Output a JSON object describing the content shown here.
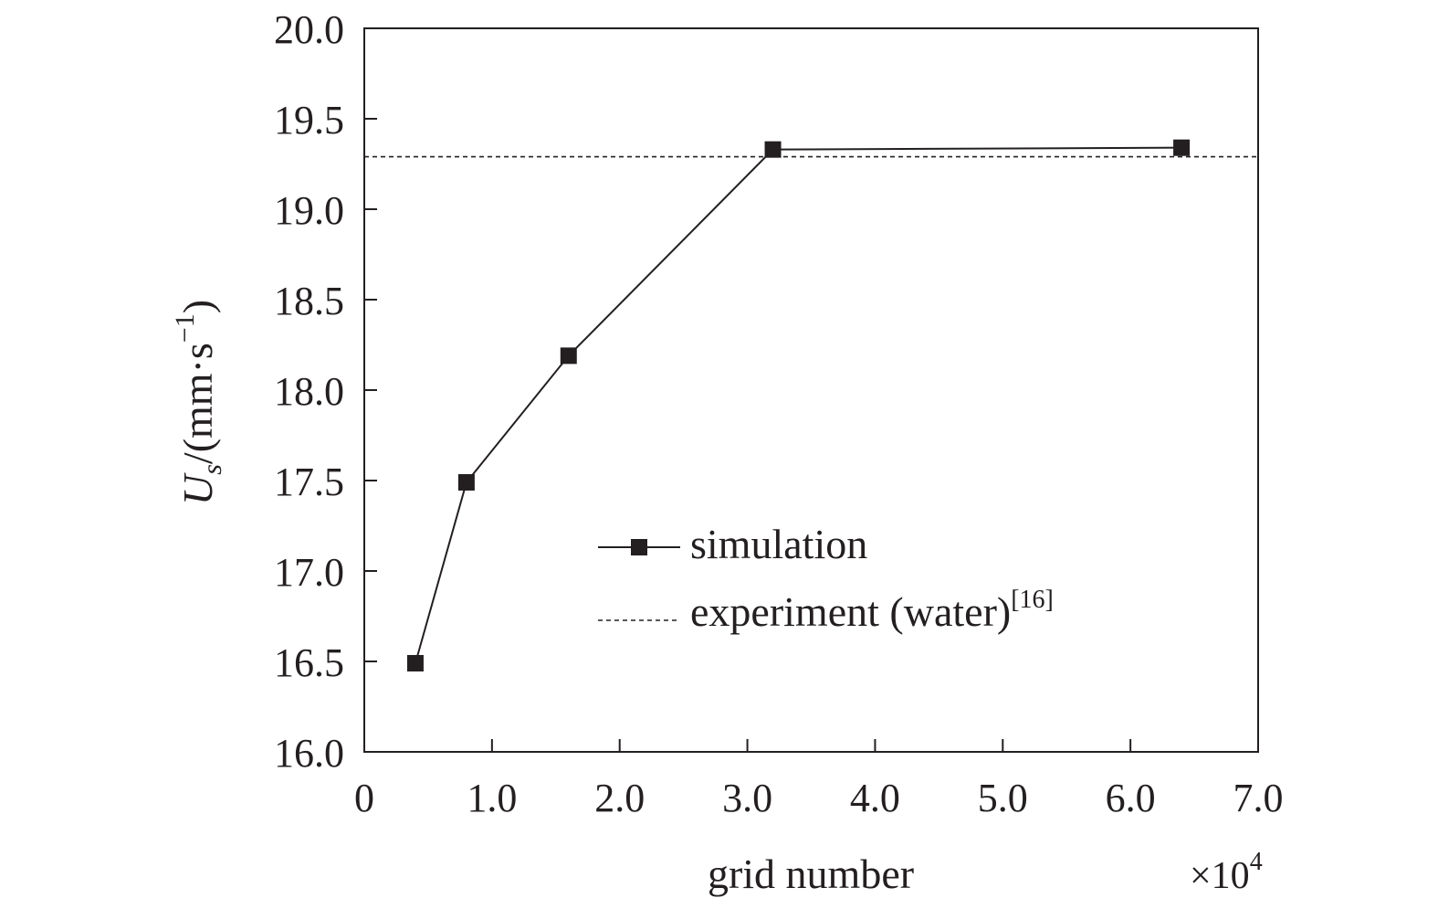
{
  "chart_data": {
    "type": "line",
    "xlabel": "grid number",
    "x_multiplier": "×10",
    "x_multiplier_exp": "4",
    "ylabel_main": "U",
    "ylabel_sub": "s",
    "ylabel_unit": "/(mm·s",
    "ylabel_unit_exp": "−1",
    "ylabel_close": ")",
    "xlim": [
      0,
      7.0
    ],
    "ylim": [
      16.0,
      20.0
    ],
    "xticks": [
      0,
      1.0,
      2.0,
      3.0,
      4.0,
      5.0,
      6.0,
      7.0
    ],
    "xtick_labels": [
      "0",
      "1.0",
      "2.0",
      "3.0",
      "4.0",
      "5.0",
      "6.0",
      "7.0"
    ],
    "yticks": [
      16.0,
      16.5,
      17.0,
      17.5,
      18.0,
      18.5,
      19.0,
      19.5,
      20.0
    ],
    "ytick_labels": [
      "16.0",
      "16.5",
      "17.0",
      "17.5",
      "18.0",
      "18.5",
      "19.0",
      "19.5",
      "20.0"
    ],
    "grid": false,
    "legend_position": "center-right",
    "series": [
      {
        "name": "simulation",
        "style": "solid-square-markers",
        "x": [
          0.4,
          0.8,
          1.6,
          3.2,
          6.4
        ],
        "y": [
          16.49,
          17.49,
          18.19,
          19.33,
          19.34
        ]
      }
    ],
    "reference_line": {
      "name": "experiment (water)",
      "name_superscript": "[16]",
      "style": "dashed",
      "y": 19.29
    },
    "colors": {
      "ink": "#231f20",
      "background": "#ffffff"
    }
  }
}
